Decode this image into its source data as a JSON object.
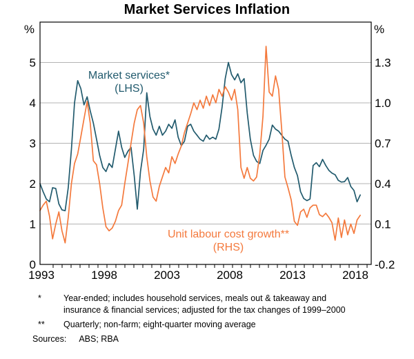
{
  "chart_data": {
    "type": "line",
    "title": "Market Services Inflation",
    "legend_position": "annotations-on-plot",
    "grid": true,
    "left_axis": {
      "unit": "%",
      "min": 0,
      "max": 6,
      "tick_values": [
        0,
        1,
        2,
        3,
        4,
        5
      ],
      "tick_labels": [
        "0",
        "1",
        "2",
        "3",
        "4",
        "5"
      ]
    },
    "right_axis": {
      "unit": "%",
      "min": -0.2,
      "max": 1.6,
      "tick_values": [
        -0.2,
        0.1,
        0.4,
        0.7,
        1.0,
        1.3
      ],
      "tick_labels": [
        "-0.2",
        "0.1",
        "0.4",
        "0.7",
        "1.0",
        "1.3"
      ]
    },
    "x_axis": {
      "min": 1993,
      "max": 2019.4,
      "label_years": [
        1993,
        1998,
        2003,
        2008,
        2013,
        2018
      ]
    },
    "annotations": [
      {
        "line1": "Market services*",
        "line2": "(LHS)",
        "series": "market-services"
      },
      {
        "line1": "Unit labour cost growth**",
        "line2": "(RHS)",
        "series": "unit-labour-cost"
      }
    ],
    "series": [
      {
        "id": "market-services",
        "name": "Market services (LHS)",
        "axis": "left",
        "color": "#215a6d",
        "points": [
          [
            1993,
            2.0
          ],
          [
            1993.25,
            1.8
          ],
          [
            1993.5,
            1.62
          ],
          [
            1993.75,
            1.55
          ],
          [
            1994,
            1.9
          ],
          [
            1994.25,
            1.88
          ],
          [
            1994.5,
            1.5
          ],
          [
            1994.75,
            1.35
          ],
          [
            1995,
            1.33
          ],
          [
            1995.25,
            1.9
          ],
          [
            1995.5,
            2.85
          ],
          [
            1995.75,
            4.0
          ],
          [
            1996,
            4.55
          ],
          [
            1996.25,
            4.35
          ],
          [
            1996.5,
            3.95
          ],
          [
            1996.75,
            4.15
          ],
          [
            1997,
            3.8
          ],
          [
            1997.25,
            3.5
          ],
          [
            1997.5,
            3.1
          ],
          [
            1997.75,
            2.7
          ],
          [
            1998,
            2.4
          ],
          [
            1998.25,
            2.3
          ],
          [
            1998.5,
            2.5
          ],
          [
            1998.75,
            2.4
          ],
          [
            1999,
            2.85
          ],
          [
            1999.25,
            3.3
          ],
          [
            1999.5,
            2.9
          ],
          [
            1999.75,
            2.65
          ],
          [
            2000,
            2.8
          ],
          [
            2000.25,
            2.9
          ],
          [
            2000.5,
            2.2
          ],
          [
            2000.75,
            1.37
          ],
          [
            2001,
            2.3
          ],
          [
            2001.25,
            2.85
          ],
          [
            2001.5,
            4.25
          ],
          [
            2001.75,
            3.66
          ],
          [
            2002,
            3.35
          ],
          [
            2002.25,
            3.2
          ],
          [
            2002.5,
            3.42
          ],
          [
            2002.75,
            3.2
          ],
          [
            2003,
            3.3
          ],
          [
            2003.25,
            3.47
          ],
          [
            2003.5,
            3.37
          ],
          [
            2003.75,
            3.58
          ],
          [
            2004,
            3.15
          ],
          [
            2004.25,
            2.94
          ],
          [
            2004.5,
            3.05
          ],
          [
            2004.75,
            3.42
          ],
          [
            2005,
            3.47
          ],
          [
            2005.25,
            3.3
          ],
          [
            2005.5,
            3.2
          ],
          [
            2005.75,
            3.1
          ],
          [
            2006,
            3.05
          ],
          [
            2006.25,
            3.2
          ],
          [
            2006.5,
            3.1
          ],
          [
            2006.75,
            3.15
          ],
          [
            2007,
            3.1
          ],
          [
            2007.25,
            3.35
          ],
          [
            2007.5,
            3.9
          ],
          [
            2007.75,
            4.6
          ],
          [
            2008,
            5.0
          ],
          [
            2008.25,
            4.7
          ],
          [
            2008.5,
            4.57
          ],
          [
            2008.75,
            4.72
          ],
          [
            2009,
            4.5
          ],
          [
            2009.25,
            4.6
          ],
          [
            2009.5,
            3.75
          ],
          [
            2009.75,
            3.1
          ],
          [
            2010,
            2.7
          ],
          [
            2010.25,
            2.55
          ],
          [
            2010.5,
            2.5
          ],
          [
            2010.75,
            2.82
          ],
          [
            2011,
            2.95
          ],
          [
            2011.25,
            3.1
          ],
          [
            2011.5,
            3.45
          ],
          [
            2011.75,
            3.35
          ],
          [
            2012,
            3.3
          ],
          [
            2012.25,
            3.2
          ],
          [
            2012.5,
            3.1
          ],
          [
            2012.75,
            3.05
          ],
          [
            2013,
            2.7
          ],
          [
            2013.25,
            2.4
          ],
          [
            2013.5,
            2.2
          ],
          [
            2013.75,
            1.8
          ],
          [
            2014,
            1.63
          ],
          [
            2014.25,
            1.58
          ],
          [
            2014.5,
            1.62
          ],
          [
            2014.75,
            2.45
          ],
          [
            2015,
            2.52
          ],
          [
            2015.25,
            2.42
          ],
          [
            2015.5,
            2.6
          ],
          [
            2015.75,
            2.45
          ],
          [
            2016,
            2.33
          ],
          [
            2016.25,
            2.26
          ],
          [
            2016.5,
            2.22
          ],
          [
            2016.75,
            2.08
          ],
          [
            2017,
            2.04
          ],
          [
            2017.25,
            2.05
          ],
          [
            2017.5,
            2.15
          ],
          [
            2017.75,
            1.93
          ],
          [
            2018,
            1.83
          ],
          [
            2018.25,
            1.55
          ],
          [
            2018.5,
            1.72
          ]
        ]
      },
      {
        "id": "unit-labour-cost",
        "name": "Unit labour cost growth (RHS)",
        "axis": "right",
        "color": "#f4793c",
        "points": [
          [
            1993,
            0.2
          ],
          [
            1993.25,
            0.24
          ],
          [
            1993.5,
            0.27
          ],
          [
            1993.75,
            0.16
          ],
          [
            1994,
            -0.01
          ],
          [
            1994.25,
            0.1
          ],
          [
            1994.5,
            0.19
          ],
          [
            1994.75,
            0.05
          ],
          [
            1995,
            -0.04
          ],
          [
            1995.25,
            0.15
          ],
          [
            1995.5,
            0.4
          ],
          [
            1995.75,
            0.55
          ],
          [
            1996,
            0.62
          ],
          [
            1996.25,
            0.75
          ],
          [
            1996.5,
            0.88
          ],
          [
            1996.75,
            1.01
          ],
          [
            1997,
            0.85
          ],
          [
            1997.25,
            0.57
          ],
          [
            1997.5,
            0.54
          ],
          [
            1997.75,
            0.4
          ],
          [
            1998,
            0.22
          ],
          [
            1998.25,
            0.08
          ],
          [
            1998.5,
            0.05
          ],
          [
            1998.75,
            0.07
          ],
          [
            1999,
            0.12
          ],
          [
            1999.25,
            0.2
          ],
          [
            1999.5,
            0.24
          ],
          [
            1999.75,
            0.4
          ],
          [
            2000,
            0.55
          ],
          [
            2000.25,
            0.7
          ],
          [
            2000.5,
            0.85
          ],
          [
            2000.75,
            0.95
          ],
          [
            2001,
            0.98
          ],
          [
            2001.25,
            0.85
          ],
          [
            2001.5,
            0.6
          ],
          [
            2001.75,
            0.42
          ],
          [
            2002,
            0.3
          ],
          [
            2002.25,
            0.27
          ],
          [
            2002.5,
            0.38
          ],
          [
            2002.75,
            0.45
          ],
          [
            2003,
            0.52
          ],
          [
            2003.25,
            0.48
          ],
          [
            2003.5,
            0.6
          ],
          [
            2003.75,
            0.55
          ],
          [
            2004,
            0.62
          ],
          [
            2004.25,
            0.68
          ],
          [
            2004.5,
            0.78
          ],
          [
            2004.75,
            0.85
          ],
          [
            2005,
            0.92
          ],
          [
            2005.25,
            1.0
          ],
          [
            2005.5,
            0.95
          ],
          [
            2005.75,
            1.02
          ],
          [
            2006,
            0.96
          ],
          [
            2006.25,
            1.05
          ],
          [
            2006.5,
            0.98
          ],
          [
            2006.75,
            1.06
          ],
          [
            2007,
            1.0
          ],
          [
            2007.25,
            1.1
          ],
          [
            2007.5,
            1.05
          ],
          [
            2007.75,
            1.12
          ],
          [
            2008,
            1.08
          ],
          [
            2008.25,
            1.02
          ],
          [
            2008.5,
            1.1
          ],
          [
            2008.75,
            0.95
          ],
          [
            2009,
            0.52
          ],
          [
            2009.25,
            0.44
          ],
          [
            2009.5,
            0.52
          ],
          [
            2009.75,
            0.44
          ],
          [
            2010,
            0.42
          ],
          [
            2010.25,
            0.45
          ],
          [
            2010.5,
            0.62
          ],
          [
            2010.75,
            0.9
          ],
          [
            2011,
            1.42
          ],
          [
            2011.25,
            1.08
          ],
          [
            2011.5,
            1.05
          ],
          [
            2011.75,
            1.2
          ],
          [
            2012,
            1.1
          ],
          [
            2012.25,
            0.8
          ],
          [
            2012.5,
            0.45
          ],
          [
            2012.75,
            0.37
          ],
          [
            2013,
            0.28
          ],
          [
            2013.25,
            0.12
          ],
          [
            2013.5,
            0.09
          ],
          [
            2013.75,
            0.19
          ],
          [
            2014,
            0.21
          ],
          [
            2014.25,
            0.15
          ],
          [
            2014.5,
            0.22
          ],
          [
            2014.75,
            0.24
          ],
          [
            2015,
            0.24
          ],
          [
            2015.25,
            0.17
          ],
          [
            2015.5,
            0.155
          ],
          [
            2015.75,
            0.18
          ],
          [
            2016,
            0.15
          ],
          [
            2016.25,
            0.11
          ],
          [
            2016.5,
            -0.02
          ],
          [
            2016.75,
            0.145
          ],
          [
            2017,
            0.0
          ],
          [
            2017.25,
            0.13
          ],
          [
            2017.5,
            0.02
          ],
          [
            2017.75,
            0.1
          ],
          [
            2018,
            0.03
          ],
          [
            2018.25,
            0.13
          ],
          [
            2018.5,
            0.165
          ]
        ]
      }
    ]
  },
  "colors": {
    "grid": "#b3b3b3",
    "axis": "#000000",
    "background": "#ffffff",
    "market_services": "#215a6d",
    "unit_labour_cost": "#f4793c"
  },
  "footnotes": {
    "fn1": {
      "marker": "*",
      "text": "Year-ended; includes household services, meals out & takeaway and insurance & financial services; adjusted for the tax changes of 1999–2000"
    },
    "fn2": {
      "marker": "**",
      "text": "Quarterly; non-farm; eight-quarter moving average"
    },
    "sources": {
      "label": "Sources:",
      "text": "ABS; RBA"
    }
  }
}
